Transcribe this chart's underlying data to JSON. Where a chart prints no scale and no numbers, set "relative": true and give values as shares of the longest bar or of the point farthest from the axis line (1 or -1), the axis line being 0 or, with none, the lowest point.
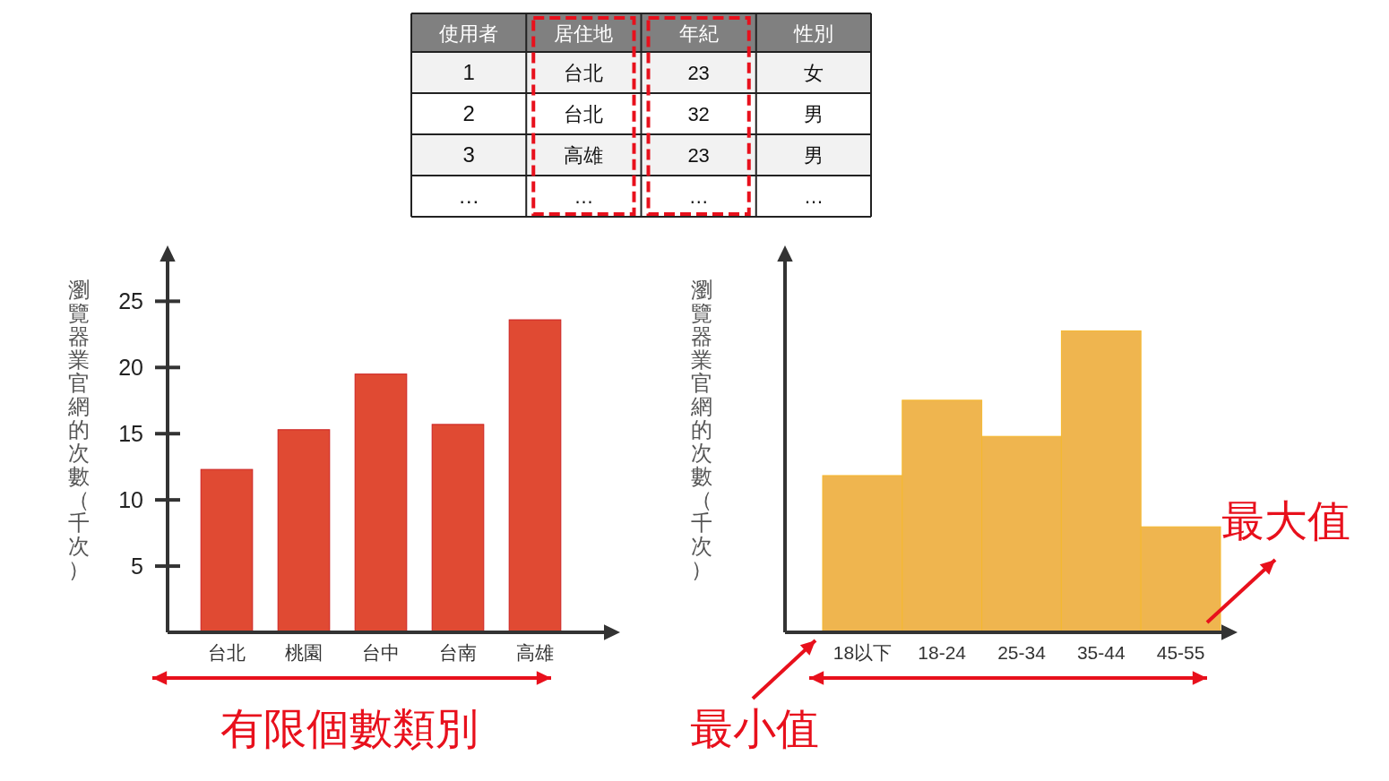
{
  "chart_data": [
    {
      "type": "other",
      "categories": [
        "使用者",
        "居住地",
        "年紀",
        "性別"
      ],
      "cell_labels": [
        [
          "1",
          "台北",
          "23",
          "女"
        ],
        [
          "2",
          "台北",
          "32",
          "男"
        ],
        [
          "3",
          "高雄",
          "23",
          "男"
        ],
        [
          "…",
          "…",
          "…",
          "…"
        ]
      ]
    },
    {
      "type": "bar",
      "ylabel": "瀏覽器業官網的次數（千次）",
      "categories": [
        "台北",
        "桃園",
        "台中",
        "台南",
        "高雄"
      ],
      "values": [
        12.3,
        15.3,
        19.5,
        15.7,
        23.6
      ],
      "color": "#e04a33",
      "ylim": [
        0,
        28
      ],
      "yticks": [
        5,
        10,
        15,
        20,
        25
      ],
      "annotations": [
        "有限個數類別"
      ]
    },
    {
      "type": "bar",
      "ylabel": "瀏覽器業官網的次數（千次）",
      "categories": [
        "18以下",
        "18-24",
        "25-34",
        "35-44",
        "45-55"
      ],
      "values": [
        0.52,
        0.77,
        0.65,
        1,
        0.35
      ],
      "relative": true,
      "color": "#efb54f",
      "annotations": [
        "最小值",
        "最大值"
      ]
    }
  ]
}
